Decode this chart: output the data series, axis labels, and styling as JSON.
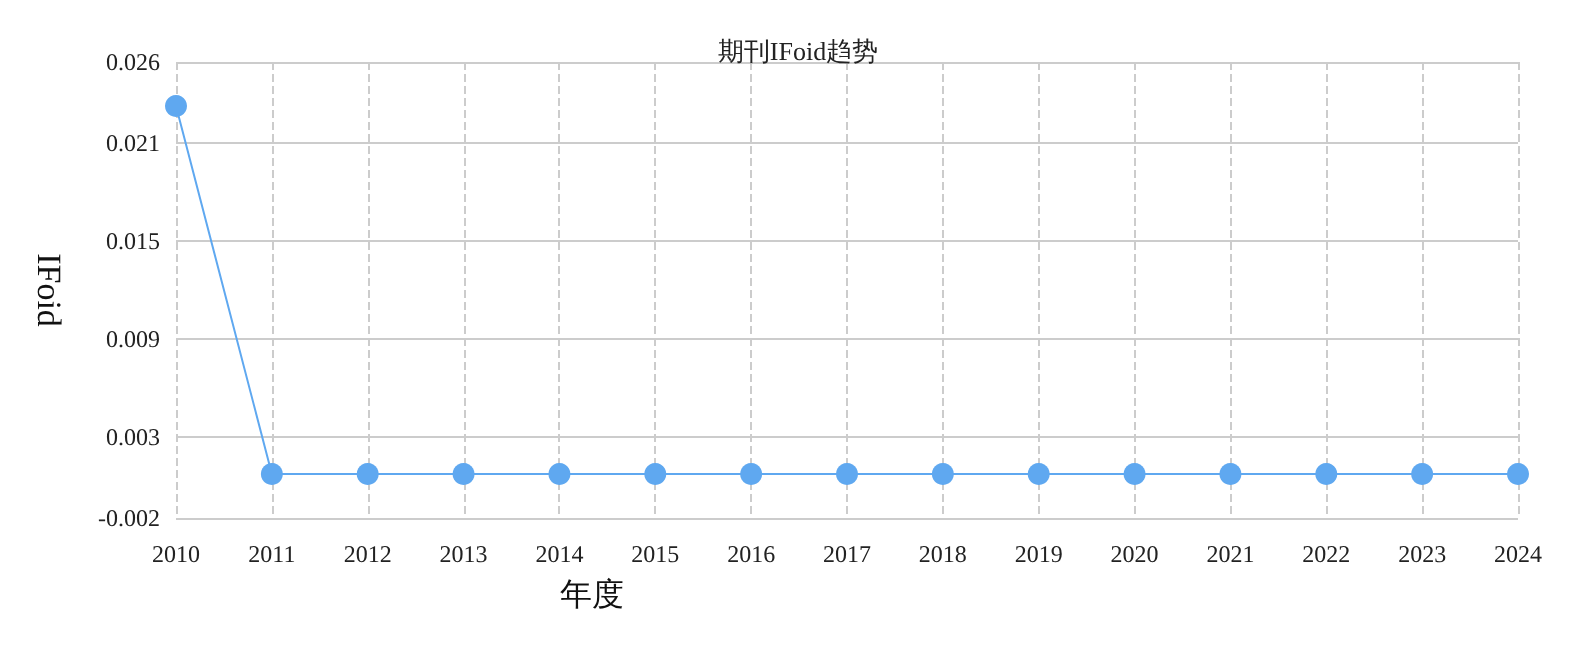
{
  "chart_data": {
    "type": "line",
    "title": "期刊IFoid趋势",
    "xlabel": "年度",
    "ylabel": "IFoid",
    "categories": [
      "2010",
      "2011",
      "2012",
      "2013",
      "2014",
      "2015",
      "2016",
      "2017",
      "2018",
      "2019",
      "2020",
      "2021",
      "2022",
      "2023",
      "2024"
    ],
    "series": [
      {
        "color": "#5fa8f0",
        "values": [
          0.0233,
          0.0007,
          0.0007,
          0.0007,
          0.0007,
          0.0007,
          0.0007,
          0.0007,
          0.0007,
          0.0007,
          0.0007,
          0.0007,
          0.0007,
          0.0007,
          0.0007
        ]
      }
    ],
    "ylim": [
      -0.002,
      0.026
    ],
    "yticks": [
      -0.002,
      0.003,
      0.009,
      0.015,
      0.021,
      0.026
    ],
    "grid": true,
    "marker": "circle",
    "line_style": "solid"
  }
}
